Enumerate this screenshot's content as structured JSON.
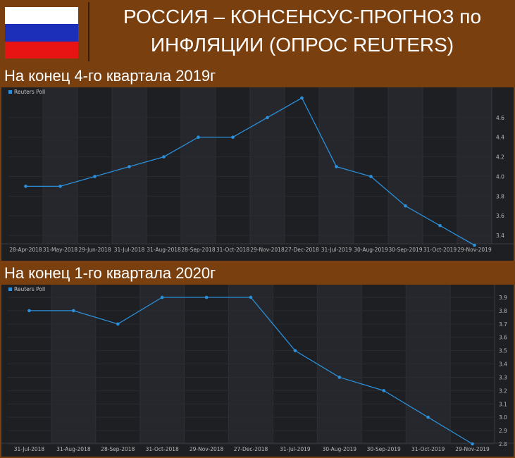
{
  "title": "РОССИЯ – КОНСЕНСУС-ПРОГНОЗ по ИНФЛЯЦИИ (ОПРОС REUTERS)",
  "title_lines": [
    "РОССИЯ – КОНСЕНСУС-ПРОГНОЗ по",
    "ИНФЛЯЦИИ (ОПРОС REUTERS)"
  ],
  "flag_colors": {
    "white": "#ffffff",
    "blue": "#1b2fb8",
    "red": "#e81313"
  },
  "colors": {
    "background": "#7a3f0f",
    "chart_bg": "#1e1f23",
    "series": "#2b8fd9"
  },
  "chart_data": [
    {
      "type": "line",
      "title": "На конец 4-го квартала 2019г",
      "legend": "Reuters Poll",
      "legend_position": "top-left",
      "categories": [
        "28-Apr-2018",
        "31-May-2018",
        "29-Jun-2018",
        "31-Jul-2018",
        "31-Aug-2018",
        "28-Sep-2018",
        "31-Oct-2018",
        "29-Nov-2018",
        "27-Dec-2018",
        "31-Jul-2019",
        "30-Aug-2019",
        "30-Sep-2019",
        "31-Oct-2019",
        "29-Nov-2019"
      ],
      "series": [
        {
          "name": "Reuters Poll",
          "values": [
            3.9,
            3.9,
            4.0,
            4.1,
            4.2,
            4.4,
            4.4,
            4.6,
            4.8,
            4.1,
            4.0,
            3.7,
            3.5,
            3.3
          ]
        }
      ],
      "yticks": [
        "3.4",
        "3.6",
        "3.8",
        "4.0",
        "4.2",
        "4.4",
        "4.6"
      ],
      "ylim": [
        3.3,
        4.8
      ],
      "grid": true
    },
    {
      "type": "line",
      "title": "На конец 1-го квартала 2020г",
      "legend": "Reuters Poll",
      "legend_position": "top-left",
      "categories": [
        "31-Jul-2018",
        "31-Aug-2018",
        "28-Sep-2018",
        "31-Oct-2018",
        "29-Nov-2018",
        "27-Dec-2018",
        "31-Jul-2019",
        "30-Aug-2019",
        "30-Sep-2019",
        "31-Oct-2019",
        "29-Nov-2019"
      ],
      "series": [
        {
          "name": "Reuters Poll",
          "values": [
            3.8,
            3.8,
            3.7,
            3.9,
            3.9,
            3.9,
            3.5,
            3.3,
            3.2,
            3.0,
            2.8
          ]
        }
      ],
      "yticks": [
        "2.8",
        "2.9",
        "3.0",
        "3.1",
        "3.2",
        "3.3",
        "3.4",
        "3.5",
        "3.6",
        "3.7",
        "3.8",
        "3.9"
      ],
      "ylim": [
        2.8,
        3.9
      ],
      "grid": true
    }
  ]
}
